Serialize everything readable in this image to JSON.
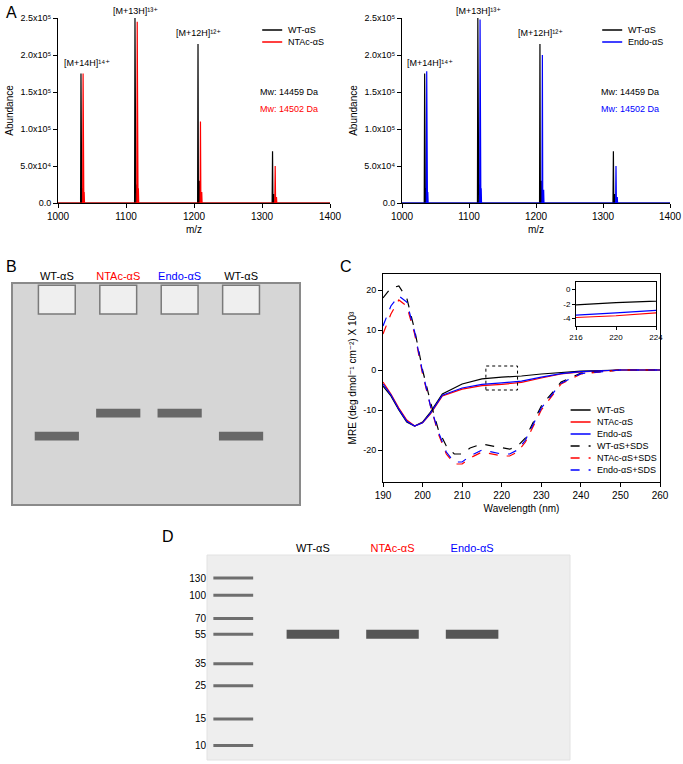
{
  "chart_data": [
    {
      "type": "line",
      "panel": "A",
      "x_label": "m/z",
      "y_label": "Abundance",
      "xlim": [
        1000,
        1400
      ],
      "ylim": [
        0,
        250000
      ],
      "xticks": [
        1000,
        1100,
        1200,
        1300,
        1400
      ],
      "yticks": [
        {
          "value": 0,
          "label": "0.0"
        },
        {
          "value": 50000,
          "label": "5.0x10⁴"
        },
        {
          "value": 100000,
          "label": "1.0x10⁵"
        },
        {
          "value": 150000,
          "label": "1.5x10⁵"
        },
        {
          "value": 200000,
          "label": "2.0x10⁵"
        },
        {
          "value": 250000,
          "label": "2.5x10⁵"
        }
      ],
      "grid": false,
      "legend": "upper right",
      "series": [
        {
          "name": "WT-αS",
          "color": "#000000",
          "x": [
            1000,
            1033.2,
            1033.8,
            1034.4,
            1034.9,
            1035.4,
            1035.9,
            1112.6,
            1113.2,
            1113.8,
            1114.5,
            1115.0,
            1115.5,
            1205.3,
            1205.9,
            1206.5,
            1207.3,
            1207.8,
            1208.3,
            1314.9,
            1315.5,
            1316.1,
            1317.0,
            1317.5,
            1318.0,
            1400
          ],
          "values": [
            0,
            0,
            175000,
            0,
            0,
            20000,
            0,
            0,
            250000,
            0,
            0,
            25000,
            0,
            0,
            215000,
            0,
            0,
            30000,
            0,
            0,
            70000,
            0,
            0,
            12000,
            0,
            0
          ]
        },
        {
          "name": "NTAc-αS",
          "color": "#ff0000",
          "x": [
            1000,
            1036.3,
            1036.9,
            1037.5,
            1038.0,
            1038.5,
            1039.0,
            1115.9,
            1116.5,
            1117.1,
            1117.7,
            1118.2,
            1118.7,
            1208.9,
            1209.5,
            1210.1,
            1210.9,
            1211.4,
            1211.9,
            1318.8,
            1319.4,
            1320.0,
            1320.8,
            1321.3,
            1321.8,
            1400
          ],
          "values": [
            0,
            0,
            175000,
            0,
            0,
            15000,
            0,
            0,
            245000,
            0,
            0,
            20000,
            0,
            0,
            110000,
            0,
            0,
            15000,
            0,
            0,
            50000,
            0,
            0,
            8000,
            0,
            0
          ]
        }
      ],
      "annotations": [
        {
          "text": "[M+14H]¹⁴⁺",
          "x": 1042,
          "y": 180000,
          "color": "#000000"
        },
        {
          "text": "[M+13H]¹³⁺",
          "x": 1114,
          "y": 250000,
          "color": "#000000"
        },
        {
          "text": "[M+12H]¹²⁺",
          "x": 1206,
          "y": 220000,
          "color": "#000000"
        },
        {
          "text": "Mw: 14459 Da",
          "x": 1340,
          "y": 140000,
          "color": "#000000"
        },
        {
          "text": "Mw: 14502 Da",
          "x": 1340,
          "y": 118000,
          "color": "#ff0000"
        }
      ]
    },
    {
      "type": "line",
      "x_label": "m/z",
      "y_label": "Abundance",
      "xlim": [
        1000,
        1400
      ],
      "ylim": [
        0,
        250000
      ],
      "xticks": [
        1000,
        1100,
        1200,
        1300,
        1400
      ],
      "yticks": [
        {
          "value": 0,
          "label": "0.0"
        },
        {
          "value": 50000,
          "label": "5.0x10⁴"
        },
        {
          "value": 100000,
          "label": "1.0x10⁵"
        },
        {
          "value": 150000,
          "label": "1.5x10⁵"
        },
        {
          "value": 200000,
          "label": "2.0x10⁵"
        },
        {
          "value": 250000,
          "label": "2.5x10⁵"
        }
      ],
      "grid": false,
      "legend": "upper right",
      "series": [
        {
          "name": "WT-αS",
          "color": "#000000",
          "x": [
            1000,
            1033.2,
            1033.8,
            1034.4,
            1034.9,
            1035.4,
            1035.9,
            1112.6,
            1113.2,
            1113.8,
            1114.5,
            1115.0,
            1115.5,
            1205.3,
            1205.9,
            1206.5,
            1207.3,
            1207.8,
            1208.3,
            1314.9,
            1315.5,
            1316.1,
            1317.0,
            1317.5,
            1318.0,
            1400
          ],
          "values": [
            0,
            0,
            175000,
            0,
            0,
            20000,
            0,
            0,
            250000,
            0,
            0,
            25000,
            0,
            0,
            215000,
            0,
            0,
            30000,
            0,
            0,
            70000,
            0,
            0,
            12000,
            0,
            0
          ]
        },
        {
          "name": "Endo-αS",
          "color": "#0000ff",
          "x": [
            1000,
            1036.3,
            1036.9,
            1037.5,
            1038.0,
            1038.5,
            1039.0,
            1115.9,
            1116.5,
            1117.1,
            1117.7,
            1118.2,
            1118.7,
            1208.9,
            1209.5,
            1210.1,
            1210.9,
            1211.4,
            1211.9,
            1318.8,
            1319.4,
            1320.0,
            1320.8,
            1321.3,
            1321.8,
            1400
          ],
          "values": [
            0,
            0,
            178000,
            0,
            0,
            15000,
            0,
            0,
            248000,
            0,
            0,
            20000,
            0,
            0,
            200000,
            0,
            0,
            18000,
            0,
            0,
            50000,
            0,
            0,
            8000,
            0,
            0
          ]
        }
      ],
      "annotations": [
        {
          "text": "[M+14H]¹⁴⁺",
          "x": 1042,
          "y": 180000,
          "color": "#000000"
        },
        {
          "text": "[M+13H]¹³⁺",
          "x": 1114,
          "y": 250000,
          "color": "#000000"
        },
        {
          "text": "[M+12H]¹²⁺",
          "x": 1206,
          "y": 220000,
          "color": "#000000"
        },
        {
          "text": "Mw: 14459 Da",
          "x": 1340,
          "y": 140000,
          "color": "#000000"
        },
        {
          "text": "Mw: 14502 Da",
          "x": 1340,
          "y": 118000,
          "color": "#0000ff"
        }
      ]
    },
    {
      "type": "gel",
      "panel": "B",
      "categories": [
        "WT-αS",
        "NTAc-αS",
        "Endo-αS",
        "WT-αS"
      ],
      "colors": [
        "#000000",
        "#ff0000",
        "#0000ff",
        "#000000"
      ],
      "tick_labels": "x",
      "grid": false
    },
    {
      "type": "line",
      "panel": "C",
      "x_label": "Wavelength (nm)",
      "y_label": "MRE (deg dmol⁻¹ cm⁻²) X 10³",
      "xlim": [
        190,
        260
      ],
      "ylim": [
        -28,
        24
      ],
      "xticks": [
        190,
        200,
        210,
        220,
        230,
        240,
        250,
        260
      ],
      "yticks": [
        -20,
        -10,
        0,
        10,
        20
      ],
      "grid": false,
      "legend": "lower right",
      "series": [
        {
          "name": "WT-αS",
          "color": "#000000",
          "line_style": "solid",
          "x": [
            190,
            192,
            194,
            196,
            198,
            200,
            202,
            205,
            210,
            215,
            220,
            225,
            230,
            235,
            240,
            250,
            260
          ],
          "values": [
            -4,
            -6.5,
            -10,
            -13,
            -14,
            -13,
            -10.5,
            -6,
            -3.5,
            -2.2,
            -1.8,
            -1.5,
            -1,
            -0.6,
            -0.3,
            0,
            0
          ]
        },
        {
          "name": "NTAc-αS",
          "color": "#ff0000",
          "line_style": "solid",
          "x": [
            190,
            192,
            194,
            196,
            198,
            200,
            202,
            205,
            210,
            215,
            220,
            225,
            230,
            235,
            240,
            250,
            260
          ],
          "values": [
            -3,
            -6,
            -9.5,
            -12.5,
            -14,
            -13.2,
            -11,
            -6.5,
            -4.8,
            -3.9,
            -3.6,
            -3.1,
            -2,
            -1,
            -0.5,
            0,
            0
          ]
        },
        {
          "name": "Endo-αS",
          "color": "#0000ff",
          "line_style": "solid",
          "x": [
            190,
            192,
            194,
            196,
            198,
            200,
            202,
            205,
            210,
            215,
            220,
            225,
            230,
            235,
            240,
            250,
            260
          ],
          "values": [
            -3.5,
            -6.2,
            -9.8,
            -12.8,
            -14,
            -13.2,
            -10.8,
            -6.3,
            -4.5,
            -3.6,
            -3.2,
            -2.8,
            -1.8,
            -0.9,
            -0.4,
            0,
            0
          ]
        },
        {
          "name": "WT-αS+SDS",
          "color": "#000000",
          "line_style": "dash",
          "x": [
            190,
            192,
            194,
            196,
            198,
            200,
            202,
            204,
            206,
            208,
            210,
            212,
            215,
            218,
            220,
            222,
            224,
            226,
            228,
            230,
            235,
            240,
            250,
            260
          ],
          "values": [
            18,
            20.5,
            21,
            18,
            10,
            0,
            -8,
            -15,
            -19,
            -21,
            -21,
            -19.5,
            -18.5,
            -19,
            -19.5,
            -19.8,
            -19,
            -17,
            -13,
            -9,
            -3,
            -0.8,
            0,
            0
          ]
        },
        {
          "name": "NTAc-αS+SDS",
          "color": "#ff0000",
          "line_style": "dash",
          "x": [
            190,
            192,
            194,
            196,
            198,
            200,
            202,
            204,
            206,
            208,
            210,
            212,
            215,
            218,
            220,
            222,
            224,
            226,
            228,
            230,
            235,
            240,
            250,
            260
          ],
          "values": [
            9,
            14,
            17.5,
            16,
            9,
            -1,
            -9,
            -16,
            -21,
            -23.5,
            -23.5,
            -22,
            -20.5,
            -21,
            -21.5,
            -21.5,
            -20.5,
            -18,
            -14,
            -10,
            -3.5,
            -1,
            0,
            0
          ]
        },
        {
          "name": "Endo-αS+SDS",
          "color": "#0000ff",
          "line_style": "dash",
          "x": [
            190,
            192,
            194,
            196,
            198,
            200,
            202,
            204,
            206,
            208,
            210,
            212,
            215,
            218,
            220,
            222,
            224,
            226,
            228,
            230,
            235,
            240,
            250,
            260
          ],
          "values": [
            11,
            16,
            18.5,
            17,
            9.5,
            -0.5,
            -9,
            -15.5,
            -20.5,
            -23,
            -23,
            -21.5,
            -20,
            -20.5,
            -21,
            -21,
            -20,
            -17.5,
            -13.5,
            -9.5,
            -3.3,
            -0.9,
            0,
            0
          ]
        }
      ],
      "inset": {
        "xlim": [
          216,
          224
        ],
        "ylim": [
          -5,
          1
        ],
        "xticks": [
          216,
          220,
          224
        ],
        "yticks": [
          0,
          -2,
          -4
        ]
      }
    },
    {
      "type": "gel",
      "panel": "D",
      "categories": [
        null,
        "WT-αS",
        "NTAc-αS",
        "Endo-αS"
      ],
      "colors": [
        "#6e6e6e",
        "#000000",
        "#ff0000",
        "#0000ff"
      ],
      "ladder": [
        130,
        100,
        70,
        55,
        35,
        25,
        15,
        10
      ],
      "values": [
        null,
        55,
        55,
        55
      ],
      "log": "y",
      "ylim": [
        8,
        185
      ],
      "yticks": [
        130,
        100,
        70,
        55,
        35,
        25,
        15,
        10
      ],
      "grid": false
    }
  ]
}
